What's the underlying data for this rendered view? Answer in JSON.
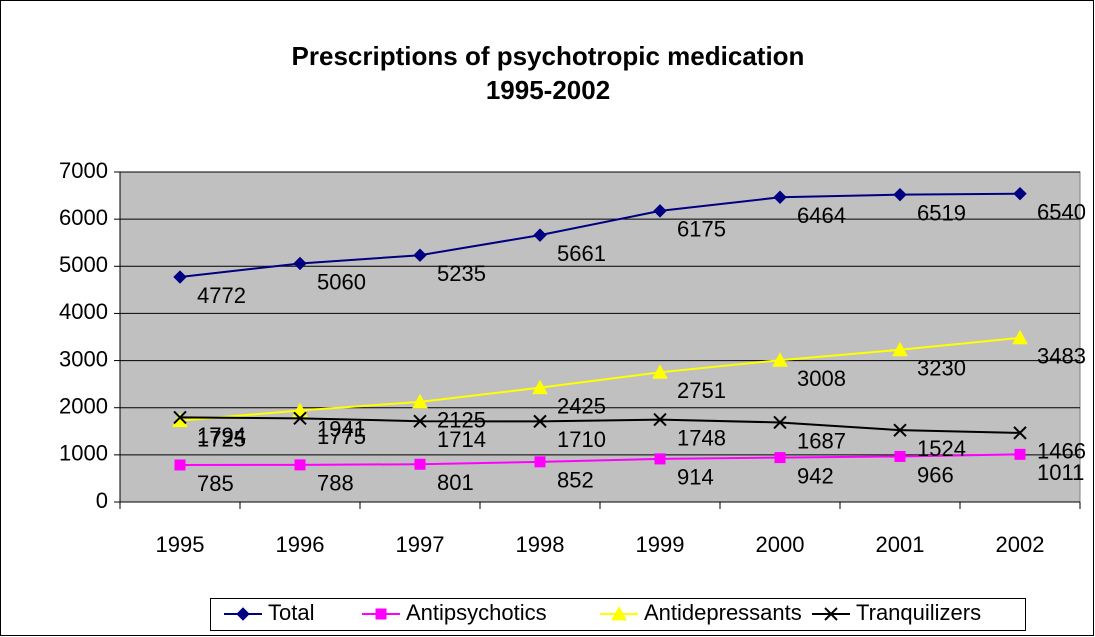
{
  "chart_data": {
    "type": "line",
    "title": [
      "Prescriptions of psychotropic medication",
      "1995-2002"
    ],
    "categories": [
      "1995",
      "1996",
      "1997",
      "1998",
      "1999",
      "2000",
      "2001",
      "2002"
    ],
    "series": [
      {
        "name": "Total",
        "color": "#000080",
        "marker": "diamond",
        "values": [
          4772,
          5060,
          5235,
          5661,
          6175,
          6464,
          6519,
          6540
        ]
      },
      {
        "name": "Antipsychotics",
        "color": "#ff00ff",
        "marker": "square",
        "values": [
          785,
          788,
          801,
          852,
          914,
          942,
          966,
          1011
        ]
      },
      {
        "name": "Antidepressants",
        "color": "#ffff00",
        "marker": "triangle",
        "values": [
          1725,
          1941,
          2125,
          2425,
          2751,
          3008,
          3230,
          3483
        ]
      },
      {
        "name": "Tranquilizers",
        "color": "#000000",
        "marker": "x",
        "values": [
          1794,
          1775,
          1714,
          1710,
          1748,
          1687,
          1524,
          1466
        ]
      }
    ],
    "ylim": [
      0,
      7000
    ],
    "yticks": [
      0,
      1000,
      2000,
      3000,
      4000,
      5000,
      6000,
      7000
    ],
    "grid": true,
    "legend": "bottom",
    "plot_background": "#c0c0c0"
  }
}
